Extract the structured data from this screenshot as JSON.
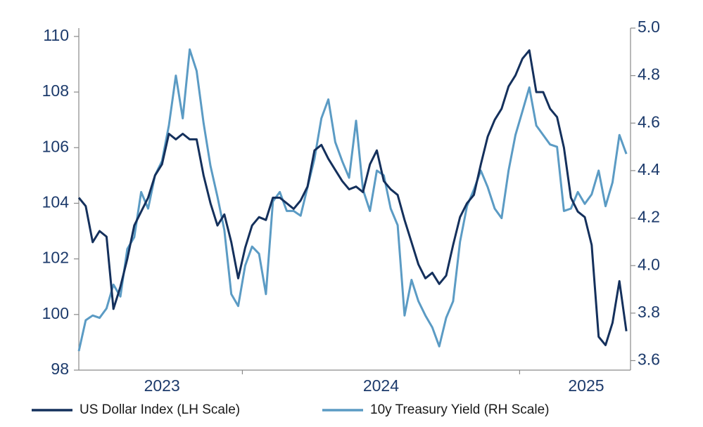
{
  "chart_data": {
    "type": "line",
    "x": [
      2023.41,
      2023.435,
      2023.46,
      2023.485,
      2023.51,
      2023.535,
      2023.56,
      2023.585,
      2023.61,
      2023.635,
      2023.66,
      2023.685,
      2023.71,
      2023.735,
      2023.76,
      2023.785,
      2023.81,
      2023.835,
      2023.86,
      2023.885,
      2023.91,
      2023.935,
      2023.96,
      2023.985,
      2024.01,
      2024.035,
      2024.06,
      2024.085,
      2024.11,
      2024.135,
      2024.16,
      2024.185,
      2024.21,
      2024.235,
      2024.26,
      2024.285,
      2024.31,
      2024.335,
      2024.36,
      2024.385,
      2024.41,
      2024.435,
      2024.46,
      2024.485,
      2024.51,
      2024.535,
      2024.56,
      2024.585,
      2024.61,
      2024.635,
      2024.66,
      2024.685,
      2024.71,
      2024.735,
      2024.76,
      2024.785,
      2024.81,
      2024.835,
      2024.86,
      2024.885,
      2024.91,
      2024.935,
      2024.96,
      2024.985,
      2025.01,
      2025.035,
      2025.06,
      2025.085,
      2025.11,
      2025.135,
      2025.16,
      2025.185,
      2025.21,
      2025.235,
      2025.26,
      2025.285,
      2025.31,
      2025.335,
      2025.36,
      2025.385
    ],
    "series": [
      {
        "name": "US Dollar Index (LH Scale)",
        "color": "#14305c",
        "axis": "y",
        "values": [
          104.2,
          103.9,
          102.6,
          103.0,
          102.8,
          100.2,
          101.0,
          102.0,
          103.2,
          103.7,
          104.2,
          105.0,
          105.4,
          106.5,
          106.3,
          106.5,
          106.3,
          106.3,
          105.0,
          104.0,
          103.2,
          103.6,
          102.6,
          101.3,
          102.4,
          103.2,
          103.5,
          103.4,
          104.2,
          104.2,
          104.0,
          103.8,
          104.1,
          104.6,
          105.9,
          106.1,
          105.6,
          105.2,
          104.8,
          104.5,
          104.6,
          104.4,
          105.4,
          105.9,
          104.8,
          104.5,
          104.3,
          103.4,
          102.6,
          101.8,
          101.3,
          101.5,
          101.1,
          101.4,
          102.5,
          103.5,
          104.0,
          104.3,
          105.4,
          106.4,
          107.0,
          107.4,
          108.2,
          108.6,
          109.2,
          109.5,
          108.0,
          108.0,
          107.4,
          107.1,
          106.0,
          104.2,
          103.7,
          103.5,
          102.5,
          99.2,
          98.9,
          99.7,
          101.2,
          99.4
        ]
      },
      {
        "name": "10y Treasury Yield (RH Scale)",
        "color": "#5b9bc4",
        "axis": "y2",
        "values": [
          3.64,
          3.77,
          3.79,
          3.78,
          3.82,
          3.92,
          3.87,
          4.07,
          4.12,
          4.31,
          4.24,
          4.38,
          4.44,
          4.59,
          4.8,
          4.62,
          4.91,
          4.82,
          4.6,
          4.42,
          4.29,
          4.15,
          3.88,
          3.83,
          4.0,
          4.08,
          4.05,
          3.88,
          4.27,
          4.31,
          4.23,
          4.23,
          4.21,
          4.33,
          4.45,
          4.62,
          4.7,
          4.52,
          4.44,
          4.37,
          4.61,
          4.32,
          4.23,
          4.4,
          4.38,
          4.24,
          4.17,
          3.79,
          3.94,
          3.85,
          3.79,
          3.74,
          3.66,
          3.78,
          3.85,
          4.1,
          4.25,
          4.32,
          4.4,
          4.33,
          4.24,
          4.2,
          4.4,
          4.55,
          4.65,
          4.75,
          4.59,
          4.55,
          4.51,
          4.5,
          4.23,
          4.24,
          4.31,
          4.26,
          4.3,
          4.4,
          4.25,
          4.35,
          4.55,
          4.47
        ]
      }
    ],
    "xlim": [
      2023.41,
      2025.4
    ],
    "xticks": [
      {
        "value": 2023.71,
        "label": "2023"
      },
      {
        "value": 2024.5,
        "label": "2024"
      },
      {
        "value": 2025.24,
        "label": "2025"
      }
    ],
    "x_tick_marks": [
      2024,
      2025
    ],
    "ylim": [
      98,
      110.3
    ],
    "yticks": [
      98,
      100,
      102,
      104,
      106,
      108,
      110
    ],
    "y2lim": [
      3.56,
      5.0
    ],
    "y2ticks": [
      3.6,
      3.8,
      {
        "value": 4,
        "label": "4.0"
      },
      4.2,
      4.4,
      4.6,
      4.8,
      {
        "value": 5,
        "label": "5.0"
      }
    ],
    "grid": false,
    "legend": "bottom"
  }
}
